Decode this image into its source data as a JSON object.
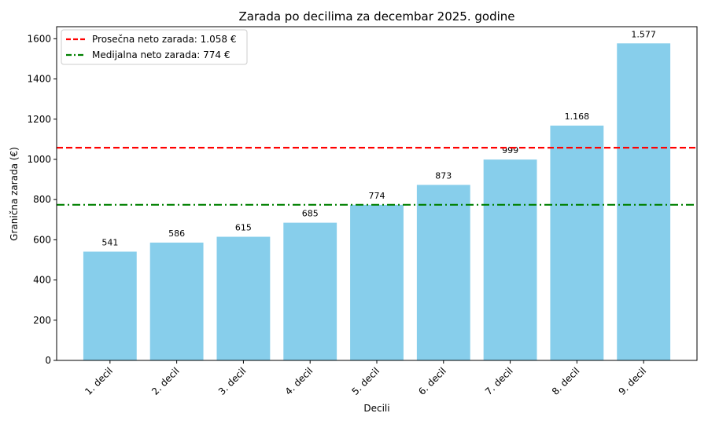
{
  "chart_data": {
    "type": "bar",
    "title": "Zarada po decilima za decembar 2025. godine",
    "xlabel": "Decili",
    "ylabel": "Granična zarada (€)",
    "categories": [
      "1. decil",
      "2. decil",
      "3. decil",
      "4. decil",
      "5. decil",
      "6. decil",
      "7. decil",
      "8. decil",
      "9. decil"
    ],
    "values": [
      541,
      586,
      615,
      685,
      774,
      873,
      999,
      1168,
      1577
    ],
    "value_labels": [
      "541",
      "586",
      "615",
      "685",
      "774",
      "873",
      "999",
      "1.168",
      "1.577"
    ],
    "ylim": [
      0,
      1660
    ],
    "yticks": [
      0,
      200,
      400,
      600,
      800,
      1000,
      1200,
      1400,
      1600
    ],
    "bar_color": "#87CEEB",
    "reference_lines": [
      {
        "label": "Prosečna neto zarada: 1.058 €",
        "value": 1058,
        "color": "#ff0000",
        "style": "dashed"
      },
      {
        "label": "Medijalna neto zarada: 774 €",
        "value": 774,
        "color": "#008000",
        "style": "dashdot"
      }
    ],
    "legend_position": "top-left",
    "grid": false
  }
}
